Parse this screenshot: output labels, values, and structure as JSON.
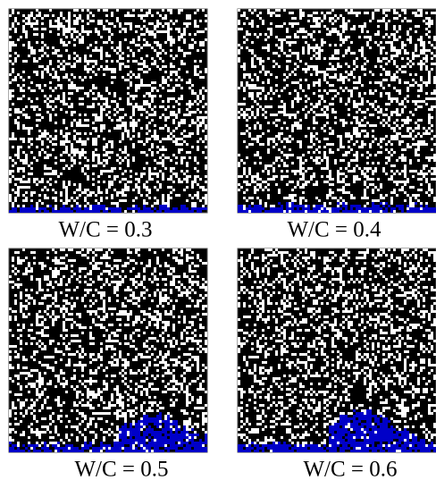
{
  "panels": [
    {
      "label": "W/C = 0.3"
    },
    {
      "label": "W/C = 0.4"
    },
    {
      "label": "W/C = 0.5"
    },
    {
      "label": "W/C = 0.6"
    }
  ]
}
